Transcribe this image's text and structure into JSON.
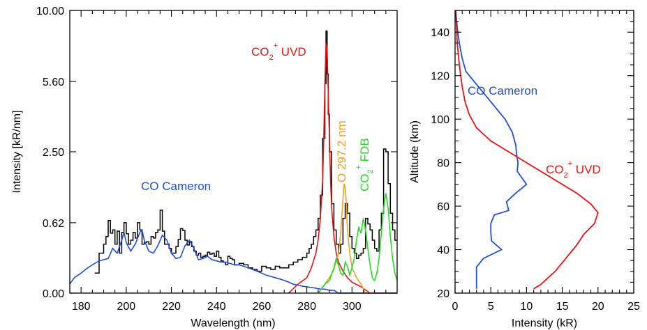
{
  "chart_data": [
    {
      "type": "line",
      "xlabel": "Wavelength (nm)",
      "ylabel": "Intensity [kR/nm]",
      "xlim": [
        175,
        320
      ],
      "ylim": [
        0,
        10
      ],
      "x_ticks": [
        180,
        200,
        220,
        240,
        260,
        280,
        300
      ],
      "y_ticks": [
        "0.00",
        "0.62",
        "2.50",
        "5.60",
        "10.00"
      ],
      "y_scale": "square-root",
      "grid": false,
      "colors": {
        "observed": "#000000",
        "co_cameron": "#1f4fd8",
        "co2_uvd": "#ee1111",
        "o_line": "#f0a020",
        "co2_fdb": "#22dd22"
      },
      "annotations": {
        "co_cameron": "CO Cameron",
        "co2_uvd": {
          "main": "CO",
          "sub": "2",
          "sup": "+",
          "suffix": " UVD"
        },
        "o_line": "O 297.2 nm",
        "co2_fdb": {
          "main": "CO",
          "sub": "2",
          "sup": "+",
          "suffix": " FDB"
        }
      },
      "series": [
        {
          "key": "observed",
          "step": true,
          "x": [
            186,
            188,
            190,
            191,
            192,
            193,
            194,
            195,
            196,
            197,
            198,
            199,
            200,
            201,
            202,
            203,
            204,
            205,
            206,
            207,
            208,
            209,
            210,
            211,
            212,
            213,
            214,
            215,
            216,
            217,
            218,
            219,
            220,
            221,
            222,
            223,
            224,
            225,
            226,
            227,
            228,
            229,
            230,
            231,
            232,
            233,
            234,
            235,
            236,
            237,
            238,
            239,
            240,
            241,
            242,
            243,
            244,
            245,
            246,
            247,
            248,
            249,
            250,
            252,
            254,
            256,
            258,
            260,
            262,
            264,
            266,
            268,
            270,
            272,
            274,
            276,
            278,
            280,
            281,
            282,
            283,
            284,
            285,
            286,
            287,
            288,
            288.5,
            289,
            289.5,
            290,
            291,
            292,
            293,
            294,
            295,
            296,
            297,
            298,
            299,
            300,
            301,
            302,
            303,
            304,
            305,
            306,
            307,
            308,
            309,
            310,
            311,
            312,
            313,
            314,
            315,
            316,
            317,
            318,
            319,
            320
          ],
          "y": [
            0.05,
            0.2,
            0.3,
            0.4,
            0.66,
            0.45,
            0.5,
            0.3,
            0.48,
            0.2,
            0.46,
            0.62,
            0.44,
            0.3,
            0.35,
            0.46,
            0.38,
            0.62,
            0.5,
            0.3,
            0.32,
            0.33,
            0.3,
            0.4,
            0.38,
            0.46,
            0.5,
            0.86,
            0.48,
            0.3,
            0.3,
            0.25,
            0.2,
            0.2,
            0.27,
            0.36,
            0.52,
            0.49,
            0.35,
            0.29,
            0.33,
            0.27,
            0.22,
            0.18,
            0.2,
            0.16,
            0.17,
            0.18,
            0.21,
            0.19,
            0.2,
            0.17,
            0.22,
            0.16,
            0.13,
            0.12,
            0.1,
            0.17,
            0.15,
            0.14,
            0.1,
            0.1,
            0.11,
            0.1,
            0.08,
            0.07,
            0.06,
            0.09,
            0.08,
            0.07,
            0.09,
            0.08,
            0.08,
            0.1,
            0.12,
            0.14,
            0.16,
            0.2,
            0.25,
            0.3,
            0.4,
            0.5,
            0.7,
            1.2,
            3.0,
            5.5,
            8.6,
            6.0,
            4.0,
            2.5,
            1.0,
            0.5,
            0.3,
            0.2,
            0.3,
            0.7,
            1.0,
            0.8,
            0.4,
            0.25,
            0.2,
            0.15,
            0.18,
            0.2,
            0.25,
            0.7,
            0.6,
            0.5,
            0.35,
            0.25,
            0.22,
            0.5,
            0.8,
            2.6,
            2.5,
            1.5,
            0.8,
            0.5,
            0.35,
            0.35
          ]
        },
        {
          "key": "co_cameron",
          "step": false,
          "x": [
            175,
            177,
            180,
            182,
            184,
            186,
            188,
            190,
            192,
            194,
            196,
            198,
            199,
            200,
            202,
            204,
            206,
            207,
            208,
            210,
            212,
            214,
            216,
            218,
            220,
            222,
            224,
            226,
            228,
            230,
            232,
            234,
            236,
            238,
            240,
            242,
            244,
            246,
            248,
            250,
            252,
            254,
            256,
            258,
            260,
            262,
            264,
            266,
            268,
            270,
            272,
            274,
            276,
            278,
            280,
            282,
            284,
            286,
            288,
            290,
            292,
            294,
            296,
            298,
            300,
            302,
            304,
            306,
            308,
            310,
            312,
            314,
            316,
            318,
            320
          ],
          "y": [
            0.01,
            0.03,
            0.05,
            0.07,
            0.09,
            0.11,
            0.13,
            0.14,
            0.15,
            0.25,
            0.2,
            0.35,
            0.46,
            0.32,
            0.22,
            0.3,
            0.46,
            0.5,
            0.35,
            0.22,
            0.2,
            0.28,
            0.42,
            0.35,
            0.2,
            0.15,
            0.16,
            0.28,
            0.35,
            0.25,
            0.14,
            0.15,
            0.17,
            0.14,
            0.13,
            0.12,
            0.12,
            0.11,
            0.1,
            0.1,
            0.09,
            0.08,
            0.07,
            0.06,
            0.05,
            0.04,
            0.035,
            0.03,
            0.025,
            0.02,
            0.015,
            0.01,
            0.008,
            0.006,
            0.005,
            0.004,
            0.003,
            0.002,
            0.002,
            0.001,
            0.001,
            0,
            0,
            0,
            0,
            0,
            0,
            0,
            0,
            0,
            0,
            0,
            0,
            0,
            0
          ]
        },
        {
          "key": "co2_uvd",
          "step": false,
          "x": [
            272,
            276,
            280,
            282,
            284,
            285,
            286,
            287,
            287.5,
            288,
            288.5,
            289,
            289.5,
            290,
            290.5,
            291,
            292,
            293,
            294,
            296,
            298,
            300,
            304,
            308,
            312,
            316,
            320
          ],
          "y": [
            0,
            0.01,
            0.03,
            0.08,
            0.2,
            0.35,
            0.7,
            1.6,
            3.0,
            5.5,
            7.8,
            7.5,
            5.0,
            3.0,
            1.6,
            0.9,
            0.4,
            0.2,
            0.12,
            0.06,
            0.03,
            0.015,
            0.005,
            0,
            0,
            0,
            0
          ]
        },
        {
          "key": "o_line",
          "step": false,
          "x": [
            285,
            288,
            290,
            292,
            294,
            295,
            296,
            296.5,
            297,
            297.5,
            298,
            299,
            300,
            302,
            304,
            306,
            310
          ],
          "y": [
            0,
            0.01,
            0.03,
            0.07,
            0.2,
            0.45,
            1.1,
            1.5,
            1.4,
            1.0,
            0.5,
            0.2,
            0.08,
            0.03,
            0.01,
            0,
            0
          ]
        },
        {
          "key": "co2_fdb",
          "step": false,
          "x": [
            285,
            288,
            290,
            292,
            293,
            294,
            295,
            296,
            297,
            298,
            299,
            300,
            301,
            302,
            303,
            304,
            305,
            306,
            307,
            308,
            309,
            310,
            311,
            312,
            313,
            314,
            315,
            316,
            317,
            318,
            319,
            320
          ],
          "y": [
            0,
            0.01,
            0.02,
            0.08,
            0.15,
            0.1,
            0.05,
            0.04,
            0.12,
            0.09,
            0.04,
            0.08,
            0.15,
            0.35,
            0.55,
            0.45,
            0.7,
            0.5,
            0.25,
            0.1,
            0.03,
            0.02,
            0.05,
            0.15,
            0.45,
            0.9,
            1.25,
            0.9,
            0.4,
            0.15,
            0.05,
            0.02
          ]
        }
      ]
    },
    {
      "type": "line",
      "xlabel": "Intensity (kR)",
      "ylabel": "Altitude (km)",
      "xlim": [
        0,
        25
      ],
      "ylim": [
        20,
        150
      ],
      "x_ticks": [
        0,
        5,
        10,
        15,
        20,
        25
      ],
      "y_ticks": [
        20,
        40,
        60,
        80,
        100,
        120,
        140
      ],
      "grid": false,
      "annotations": {
        "co_cameron": "CO Cameron",
        "co2_uvd": {
          "main": "CO",
          "sub": "2",
          "sup": "+",
          "suffix": " UVD"
        }
      },
      "series": [
        {
          "key": "co_cameron",
          "x": [
            0.1,
            0.3,
            0.6,
            1.0,
            1.5,
            2.5,
            3.5,
            4.5,
            5.5,
            7.0,
            8.0,
            8.5,
            8.6,
            8.8,
            8.7,
            10.0,
            8.5,
            7.2,
            7.5,
            5.5,
            5.0,
            5.0,
            5.1,
            6.5,
            4.0,
            3.0,
            3.0
          ],
          "y": [
            150,
            142,
            135,
            128,
            122,
            118,
            114,
            110,
            106,
            100,
            94,
            88,
            84,
            80,
            76,
            70,
            66,
            62,
            58,
            56,
            52,
            48,
            44,
            40,
            36,
            32,
            22
          ]
        },
        {
          "key": "co2_uvd",
          "x": [
            0.1,
            0.3,
            0.6,
            1.0,
            1.4,
            2.0,
            3.0,
            5.0,
            8.0,
            11.0,
            14.0,
            17.0,
            19.0,
            20.0,
            19.5,
            18.0,
            17.0,
            16.0,
            15.0,
            14.0,
            13.0,
            12.0,
            11.0
          ],
          "y": [
            150,
            135,
            125,
            115,
            108,
            102,
            96,
            90,
            84,
            78,
            72,
            66,
            61,
            57,
            52,
            47,
            42,
            38,
            34,
            30,
            27,
            24,
            22
          ]
        }
      ]
    }
  ]
}
